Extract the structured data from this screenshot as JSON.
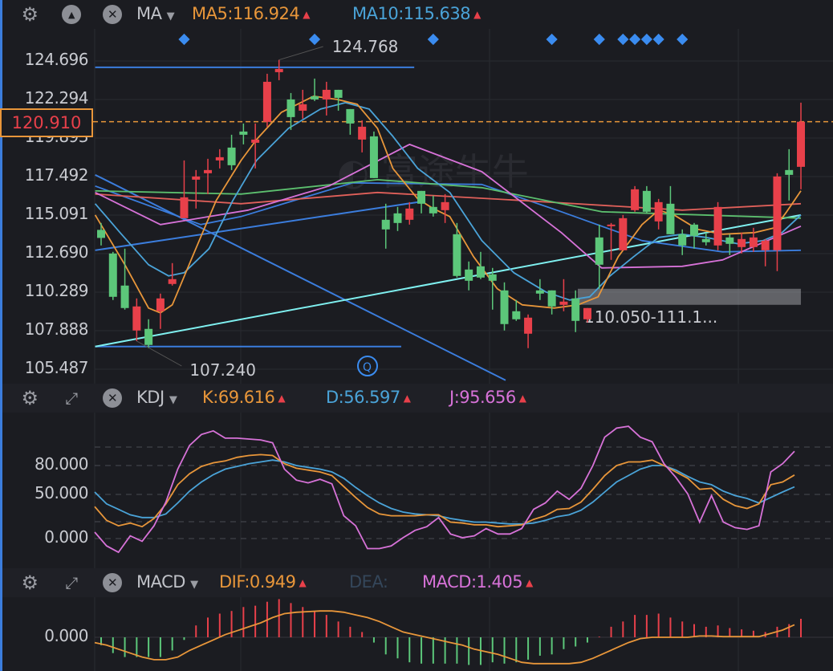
{
  "main_header": {
    "indicator": "MA",
    "ma5_label": "MA5:116.924",
    "ma10_label": "MA10:115.638"
  },
  "kdj_header": {
    "indicator": "KDJ",
    "k_label": "K:69.616",
    "d_label": "D:56.597",
    "j_label": "J:95.656"
  },
  "macd_header": {
    "indicator": "MACD",
    "dif_label": "DIF:0.949",
    "dea_label": "DEA:",
    "macd_label": "MACD:1.405"
  },
  "price_axis": [
    "124.696",
    "122.294",
    "119.893",
    "117.492",
    "115.091",
    "112.690",
    "110.289",
    "107.888",
    "105.487"
  ],
  "current_price": "120.910",
  "high_marker": "124.768",
  "low_marker": "107.240",
  "range_label": "110.050-111.1...",
  "kdj_axis": [
    "80.000",
    "50.000",
    "0.000"
  ],
  "macd_axis": [
    "0.000"
  ],
  "colors": {
    "up": "#e8404a",
    "down": "#5cc77a",
    "ma5": "#e8963a",
    "ma10": "#4aa3d8",
    "j": "#d772d8",
    "accent": "#3b7ddd"
  },
  "chart_data": {
    "type": "candlestick",
    "price_range": [
      105.487,
      124.696
    ],
    "candles": [
      [
        114.17,
        114.6,
        113.2,
        113.67
      ],
      [
        112.7,
        112.8,
        109.8,
        110.0
      ],
      [
        110.7,
        113.0,
        109.2,
        109.3
      ],
      [
        107.9,
        109.9,
        107.24,
        109.4
      ],
      [
        108.0,
        108.6,
        106.8,
        107.0
      ],
      [
        109.1,
        110.2,
        108.0,
        109.9
      ],
      [
        110.8,
        112.1,
        110.7,
        111.1
      ],
      [
        114.9,
        118.5,
        114.9,
        116.2
      ],
      [
        117.3,
        117.9,
        115.5,
        117.5
      ],
      [
        117.7,
        118.6,
        116.4,
        117.9
      ],
      [
        118.5,
        119.2,
        118.0,
        118.7
      ],
      [
        119.3,
        120.1,
        117.9,
        118.2
      ],
      [
        120.3,
        120.8,
        119.5,
        120.1
      ],
      [
        119.6,
        120.8,
        118.0,
        119.8
      ],
      [
        120.9,
        123.9,
        120.6,
        123.4
      ],
      [
        124.0,
        124.768,
        123.5,
        124.2
      ],
      [
        122.3,
        122.7,
        120.4,
        121.2
      ],
      [
        121.6,
        122.9,
        121.1,
        122.0
      ],
      [
        122.5,
        123.6,
        122.2,
        122.3
      ],
      [
        122.3,
        123.4,
        121.3,
        122.9
      ],
      [
        122.9,
        122.9,
        121.6,
        122.4
      ],
      [
        121.7,
        121.7,
        120.1,
        120.8
      ],
      [
        119.8,
        121.0,
        119.0,
        120.6
      ],
      [
        120.0,
        120.3,
        117.4,
        117.4
      ],
      [
        114.8,
        115.8,
        113.0,
        114.2
      ],
      [
        115.2,
        115.6,
        114.1,
        114.6
      ],
      [
        114.8,
        115.9,
        114.5,
        115.5
      ],
      [
        116.6,
        116.6,
        115.2,
        115.8
      ],
      [
        115.6,
        116.3,
        115.0,
        115.2
      ],
      [
        115.4,
        116.4,
        114.6,
        115.9
      ],
      [
        113.9,
        114.6,
        111.2,
        111.3
      ],
      [
        111.7,
        112.2,
        110.4,
        111.0
      ],
      [
        111.9,
        112.8,
        111.1,
        111.2
      ],
      [
        111.4,
        111.8,
        109.2,
        111.0
      ],
      [
        110.4,
        110.9,
        107.9,
        108.3
      ],
      [
        109.1,
        109.8,
        108.5,
        108.6
      ],
      [
        107.7,
        108.9,
        106.8,
        108.7
      ],
      [
        110.4,
        111.1,
        109.8,
        110.2
      ],
      [
        110.4,
        110.4,
        108.9,
        109.4
      ],
      [
        109.5,
        111.1,
        109.1,
        109.7
      ],
      [
        109.9,
        110.4,
        107.8,
        108.5
      ],
      [
        108.6,
        109.3,
        108.4,
        109.3
      ],
      [
        113.7,
        114.5,
        110.5,
        112.0
      ],
      [
        114.4,
        114.6,
        112.3,
        114.5
      ],
      [
        112.9,
        115.1,
        112.9,
        114.9
      ],
      [
        115.4,
        116.9,
        115.3,
        116.7
      ],
      [
        116.6,
        116.9,
        115.2,
        115.3
      ],
      [
        114.7,
        116.1,
        114.2,
        115.9
      ],
      [
        115.8,
        116.9,
        113.9,
        113.9
      ],
      [
        113.9,
        114.2,
        112.6,
        113.2
      ],
      [
        114.5,
        114.6,
        113.0,
        113.8
      ],
      [
        113.6,
        114.0,
        113.2,
        113.4
      ],
      [
        113.2,
        115.9,
        112.9,
        115.6
      ],
      [
        113.7,
        113.9,
        112.6,
        113.3
      ],
      [
        113.1,
        114.0,
        112.7,
        113.6
      ],
      [
        113.1,
        114.3,
        112.8,
        113.7
      ],
      [
        112.9,
        113.6,
        111.9,
        113.5
      ],
      [
        112.9,
        117.7,
        111.6,
        117.5
      ],
      [
        117.9,
        119.2,
        116.0,
        117.6
      ],
      [
        118.1,
        122.1,
        116.7,
        120.91
      ]
    ],
    "ma_lines": [
      {
        "name": "MA5",
        "color": "#e8963a",
        "points": [
          [
            -0.5,
            115.1
          ],
          [
            2.0,
            112.0
          ],
          [
            4.0,
            109.3
          ],
          [
            5.0,
            109.0
          ],
          [
            6.0,
            109.5
          ],
          [
            7.7,
            112.5
          ],
          [
            9.7,
            116.0
          ],
          [
            11.8,
            118.5
          ],
          [
            13.1,
            119.8
          ],
          [
            15.2,
            121.5
          ],
          [
            17.9,
            122.5
          ],
          [
            19.9,
            122.3
          ],
          [
            21.6,
            122.0
          ],
          [
            23.3,
            120.5
          ],
          [
            24.6,
            118.0
          ],
          [
            26.7,
            116.1
          ],
          [
            28.0,
            115.5
          ],
          [
            29.4,
            115.0
          ],
          [
            31.4,
            112.5
          ],
          [
            33.4,
            110.5
          ],
          [
            35.5,
            109.5
          ],
          [
            38.2,
            109.3
          ],
          [
            40.2,
            109.5
          ],
          [
            41.9,
            110.0
          ],
          [
            43.6,
            112.5
          ],
          [
            45.6,
            114.5
          ],
          [
            47.0,
            115.4
          ],
          [
            48.3,
            115.1
          ],
          [
            50.3,
            114.2
          ],
          [
            52.4,
            113.9
          ],
          [
            55.1,
            114.0
          ],
          [
            56.8,
            114.3
          ],
          [
            57.8,
            115.3
          ],
          [
            59.0,
            116.6
          ]
        ]
      },
      {
        "name": "MA10",
        "color": "#4aa3d8",
        "points": [
          [
            -0.5,
            115.8
          ],
          [
            1.6,
            114.0
          ],
          [
            4.0,
            112.0
          ],
          [
            5.7,
            111.3
          ],
          [
            7.0,
            111.5
          ],
          [
            9.1,
            113.0
          ],
          [
            11.1,
            116.0
          ],
          [
            13.1,
            118.5
          ],
          [
            15.8,
            120.5
          ],
          [
            18.5,
            121.7
          ],
          [
            20.6,
            122.1
          ],
          [
            22.6,
            121.7
          ],
          [
            24.6,
            120.0
          ],
          [
            26.7,
            118.0
          ],
          [
            29.4,
            116.5
          ],
          [
            32.1,
            113.5
          ],
          [
            34.8,
            111.5
          ],
          [
            37.5,
            110.3
          ],
          [
            39.5,
            109.8
          ],
          [
            41.2,
            110.0
          ],
          [
            42.9,
            111.3
          ],
          [
            44.9,
            112.5
          ],
          [
            47.0,
            113.7
          ],
          [
            49.0,
            113.9
          ],
          [
            51.0,
            113.7
          ],
          [
            53.7,
            113.3
          ],
          [
            55.8,
            113.5
          ],
          [
            57.4,
            114.0
          ],
          [
            59.0,
            115.1
          ]
        ]
      },
      {
        "name": "MA20",
        "color": "#d772d8",
        "points": [
          [
            -0.5,
            116.5
          ],
          [
            5.0,
            114.5
          ],
          [
            12.4,
            115.4
          ],
          [
            19.2,
            116.9
          ],
          [
            26.0,
            119.5
          ],
          [
            32.1,
            117.8
          ],
          [
            38.8,
            114.0
          ],
          [
            42.2,
            111.8
          ],
          [
            49.0,
            111.9
          ],
          [
            52.4,
            112.3
          ],
          [
            59.0,
            114.4
          ]
        ]
      },
      {
        "name": "MA30",
        "color": "#5cbf6e",
        "points": [
          [
            -0.5,
            116.6
          ],
          [
            11.8,
            116.4
          ],
          [
            23.3,
            117.3
          ],
          [
            32.1,
            116.8
          ],
          [
            42.2,
            115.3
          ],
          [
            59.0,
            114.9
          ]
        ]
      },
      {
        "name": "MA60",
        "color": "#e0605a",
        "points": [
          [
            -0.5,
            116.4
          ],
          [
            11.8,
            115.8
          ],
          [
            23.3,
            116.5
          ],
          [
            35.5,
            116.0
          ],
          [
            49.0,
            115.4
          ],
          [
            59.0,
            115.8
          ]
        ]
      },
      {
        "name": "MA120",
        "color": "#3b7ddd",
        "points": [
          [
            -0.5,
            116.9
          ],
          [
            8.4,
            114.5
          ],
          [
            11.8,
            115.0
          ],
          [
            21.2,
            117.1
          ],
          [
            32.1,
            117.0
          ],
          [
            38.8,
            115.3
          ],
          [
            45.6,
            113.5
          ],
          [
            52.4,
            112.8
          ],
          [
            59.0,
            112.9
          ]
        ]
      }
    ],
    "drawings": [
      {
        "name": "resistance-line",
        "color": "#3b7ddd",
        "from": [
          -0.5,
          124.3
        ],
        "to": [
          26.4,
          124.3
        ]
      },
      {
        "name": "support-line",
        "color": "#3b7ddd",
        "from": [
          -0.5,
          106.9
        ],
        "to": [
          25.3,
          106.9
        ]
      },
      {
        "name": "down-trend-line",
        "color": "#3b7ddd",
        "from": [
          -0.5,
          117.6
        ],
        "to": [
          34.1,
          104.8
        ]
      },
      {
        "name": "up-trend-line",
        "color": "#3b7ddd",
        "from": [
          -0.5,
          112.9
        ],
        "to": [
          26.7,
          115.9
        ]
      },
      {
        "name": "long-trend-line",
        "color": "#7ff0f0",
        "from": [
          -0.5,
          106.9
        ],
        "to": [
          59.0,
          115.1
        ]
      }
    ],
    "range_zone": {
      "from_index": 41.0,
      "to_index": 59.0,
      "low": 109.5,
      "high": 110.5
    },
    "event_markers": [
      7,
      18,
      28,
      38,
      42,
      44,
      45,
      46,
      47,
      49
    ],
    "kdj": {
      "range": [
        -20,
        125
      ],
      "K": [
        35,
        20,
        14,
        17,
        13,
        22,
        38,
        59,
        71,
        79,
        83,
        85,
        89,
        91,
        92,
        91,
        82,
        77,
        75,
        73,
        69,
        57,
        45,
        34,
        27,
        25,
        25,
        25,
        26,
        26,
        18,
        17,
        15,
        15,
        13,
        14,
        15,
        21,
        25,
        32,
        33,
        40,
        54,
        69,
        80,
        84,
        84,
        86,
        80,
        73,
        66,
        54,
        55,
        43,
        36,
        33,
        38,
        59,
        62,
        69.616
      ],
      "D": [
        51,
        38,
        32,
        26,
        23,
        23,
        27,
        39,
        52,
        62,
        70,
        76,
        79,
        82,
        84,
        86,
        84,
        80,
        78,
        76,
        73,
        66,
        56,
        47,
        39,
        33,
        29,
        27,
        26,
        25,
        22,
        20,
        18,
        18,
        17,
        16,
        16,
        17,
        20,
        24,
        26,
        31,
        40,
        51,
        62,
        69,
        76,
        80,
        80,
        75,
        68,
        62,
        59,
        52,
        47,
        44,
        39,
        45,
        51,
        56.597
      ],
      "J": [
        7,
        -8,
        -15,
        3,
        -3,
        14,
        40,
        76,
        102,
        114,
        118,
        110,
        110,
        109,
        108,
        105,
        76,
        64,
        61,
        65,
        60,
        25,
        14,
        -11,
        -11,
        -8,
        1,
        9,
        13,
        23,
        5,
        1,
        3,
        11,
        5,
        5,
        11,
        32,
        39,
        52,
        43,
        55,
        80,
        111,
        121,
        123,
        111,
        106,
        82,
        67,
        49,
        18,
        47,
        18,
        12,
        10,
        14,
        73,
        82,
        95.656
      ]
    },
    "macd": {
      "histogram": [
        -0.6,
        -1.2,
        -1.5,
        -1.5,
        -1.5,
        -1.5,
        -1.0,
        -0.2,
        0.9,
        1.5,
        1.8,
        2.0,
        2.3,
        2.4,
        2.7,
        2.9,
        2.6,
        2.3,
        2.0,
        1.7,
        1.2,
        0.8,
        0.4,
        -0.4,
        -1.3,
        -1.6,
        -1.9,
        -2.0,
        -2.0,
        -2.0,
        -2.0,
        -2.1,
        -2.1,
        -1.9,
        -2.0,
        -1.9,
        -1.7,
        -1.4,
        -1.3,
        -0.9,
        -0.7,
        -0.4,
        0.05,
        0.8,
        1.2,
        1.7,
        1.7,
        1.8,
        1.5,
        1.2,
        1.0,
        0.8,
        0.9,
        0.7,
        0.6,
        0.5,
        0.4,
        0.8,
        1.0,
        1.405
      ],
      "DIF": [
        -0.4,
        -0.6,
        -0.9,
        -1.2,
        -1.5,
        -1.7,
        -1.7,
        -1.5,
        -1.0,
        -0.6,
        -0.2,
        0.2,
        0.5,
        0.8,
        1.1,
        1.5,
        1.8,
        1.9,
        1.95,
        2.0,
        2.0,
        1.9,
        1.7,
        1.5,
        1.2,
        0.8,
        0.4,
        0.2,
        0.0,
        -0.2,
        -0.4,
        -0.6,
        -0.9,
        -1.1,
        -1.3,
        -1.6,
        -1.9,
        -2.0,
        -2.0,
        -2.0,
        -2.0,
        -1.9,
        -1.6,
        -1.2,
        -0.8,
        -0.4,
        -0.1,
        0.0,
        0.0,
        0.0,
        0.0,
        0.1,
        0.1,
        0.05,
        0.05,
        0.05,
        0.05,
        0.3,
        0.55,
        0.949
      ]
    }
  }
}
